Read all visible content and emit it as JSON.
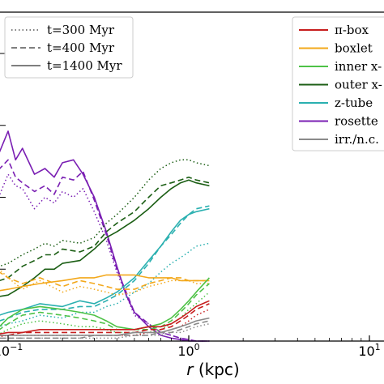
{
  "chart_data": {
    "type": "line",
    "xlabel": "r (kpc)",
    "xlabel_parts": {
      "var": "r",
      "unit": "(kpc)"
    },
    "x_scale": "log",
    "xlim": [
      0.08,
      1.3
    ],
    "ylim": [
      0,
      1.0
    ],
    "x_ticks": [
      {
        "value": 0.1,
        "label": "10",
        "exp": "−1"
      },
      {
        "value": 1,
        "label": "10",
        "exp": "0"
      },
      {
        "value": 10,
        "label": "10",
        "exp": "1"
      }
    ],
    "time_legend": {
      "placement": "top-left",
      "entries": [
        {
          "label": "t=300 Myr",
          "dash": "dotted",
          "color": "#555555"
        },
        {
          "label": "t=400 Myr",
          "dash": "dashed",
          "color": "#555555"
        },
        {
          "label": "t=1400 Myr",
          "dash": "solid",
          "color": "#555555"
        }
      ]
    },
    "orbit_legend": {
      "placement": "top-right",
      "entries": [
        {
          "label": "π-box",
          "color": "#c71e1e"
        },
        {
          "label": "boxlet",
          "color": "#f3a81b"
        },
        {
          "label": "inner x-",
          "color": "#4ec247"
        },
        {
          "label": "outer x-",
          "color": "#1b5e14"
        },
        {
          "label": "z-tube",
          "color": "#2ab0b0"
        },
        {
          "label": "rosette",
          "color": "#7a1fb3"
        },
        {
          "label": "irr./n.c.",
          "color": "#8a8a8a"
        }
      ]
    },
    "series": [
      {
        "name": "rosette",
        "color": "#7a1fb3",
        "time": "t=1400 Myr",
        "x": [
          0.08,
          0.09,
          0.1,
          0.11,
          0.12,
          0.14,
          0.16,
          0.18,
          0.2,
          0.23,
          0.26,
          0.3,
          0.35,
          0.4,
          0.45,
          0.5,
          0.6,
          0.7,
          0.8,
          0.9,
          1.0,
          1.1,
          1.3
        ],
        "y": [
          0.6,
          0.66,
          0.73,
          0.63,
          0.67,
          0.58,
          0.6,
          0.57,
          0.62,
          0.63,
          0.58,
          0.5,
          0.38,
          0.26,
          0.16,
          0.1,
          0.05,
          0.02,
          0.01,
          0.005,
          0,
          0,
          0
        ]
      },
      {
        "name": "rosette",
        "color": "#7a1fb3",
        "time": "t=400 Myr",
        "x": [
          0.08,
          0.09,
          0.1,
          0.11,
          0.12,
          0.14,
          0.16,
          0.18,
          0.2,
          0.23,
          0.26,
          0.3,
          0.35,
          0.4,
          0.45,
          0.5,
          0.6,
          0.7,
          0.8,
          0.9,
          1.0,
          1.1,
          1.3
        ],
        "y": [
          0.58,
          0.6,
          0.63,
          0.57,
          0.55,
          0.52,
          0.54,
          0.51,
          0.57,
          0.56,
          0.59,
          0.49,
          0.37,
          0.25,
          0.17,
          0.1,
          0.06,
          0.03,
          0.02,
          0.01,
          0.005,
          0,
          0
        ]
      },
      {
        "name": "rosette",
        "color": "#7a1fb3",
        "time": "t=300 Myr",
        "x": [
          0.08,
          0.09,
          0.1,
          0.11,
          0.12,
          0.14,
          0.16,
          0.18,
          0.2,
          0.23,
          0.26,
          0.3,
          0.35,
          0.4,
          0.45,
          0.5,
          0.6,
          0.7,
          0.8,
          0.9,
          1.0,
          1.1,
          1.3
        ],
        "y": [
          0.49,
          0.51,
          0.58,
          0.54,
          0.53,
          0.46,
          0.5,
          0.48,
          0.52,
          0.5,
          0.53,
          0.45,
          0.35,
          0.24,
          0.16,
          0.09,
          0.06,
          0.03,
          0.02,
          0.01,
          0.005,
          0,
          0
        ]
      },
      {
        "name": "outer x-",
        "color": "#1b5e14",
        "time": "t=1400 Myr",
        "x": [
          0.08,
          0.1,
          0.12,
          0.14,
          0.16,
          0.18,
          0.2,
          0.25,
          0.3,
          0.35,
          0.4,
          0.5,
          0.6,
          0.7,
          0.8,
          0.9,
          1.0,
          1.1,
          1.3
        ],
        "y": [
          0.15,
          0.16,
          0.19,
          0.22,
          0.25,
          0.25,
          0.27,
          0.28,
          0.32,
          0.36,
          0.38,
          0.42,
          0.46,
          0.5,
          0.53,
          0.55,
          0.56,
          0.55,
          0.54
        ]
      },
      {
        "name": "outer x-",
        "color": "#1b5e14",
        "time": "t=400 Myr",
        "x": [
          0.08,
          0.1,
          0.12,
          0.14,
          0.16,
          0.18,
          0.2,
          0.25,
          0.3,
          0.35,
          0.4,
          0.5,
          0.6,
          0.7,
          0.8,
          0.9,
          1.0,
          1.1,
          1.3
        ],
        "y": [
          0.2,
          0.22,
          0.26,
          0.28,
          0.3,
          0.3,
          0.32,
          0.31,
          0.33,
          0.38,
          0.41,
          0.45,
          0.5,
          0.54,
          0.55,
          0.56,
          0.57,
          0.56,
          0.55
        ]
      },
      {
        "name": "outer x-",
        "color": "#1b5e14",
        "time": "t=300 Myr",
        "x": [
          0.08,
          0.1,
          0.12,
          0.14,
          0.16,
          0.18,
          0.2,
          0.25,
          0.3,
          0.35,
          0.4,
          0.5,
          0.6,
          0.7,
          0.8,
          0.9,
          1.0,
          1.1,
          1.3
        ],
        "y": [
          0.25,
          0.27,
          0.3,
          0.32,
          0.34,
          0.33,
          0.35,
          0.34,
          0.36,
          0.41,
          0.44,
          0.5,
          0.56,
          0.6,
          0.62,
          0.63,
          0.63,
          0.62,
          0.61
        ]
      },
      {
        "name": "z-tube",
        "color": "#2ab0b0",
        "time": "t=1400 Myr",
        "x": [
          0.08,
          0.1,
          0.12,
          0.15,
          0.2,
          0.25,
          0.3,
          0.35,
          0.4,
          0.5,
          0.6,
          0.7,
          0.8,
          0.9,
          1.0,
          1.1,
          1.3
        ],
        "y": [
          0.08,
          0.1,
          0.11,
          0.13,
          0.12,
          0.14,
          0.13,
          0.15,
          0.17,
          0.22,
          0.28,
          0.33,
          0.38,
          0.42,
          0.44,
          0.45,
          0.46
        ]
      },
      {
        "name": "z-tube",
        "color": "#2ab0b0",
        "time": "t=400 Myr",
        "x": [
          0.08,
          0.1,
          0.12,
          0.15,
          0.2,
          0.25,
          0.3,
          0.35,
          0.4,
          0.5,
          0.6,
          0.7,
          0.8,
          0.9,
          1.0,
          1.1,
          1.3
        ],
        "y": [
          0.06,
          0.08,
          0.1,
          0.11,
          0.11,
          0.12,
          0.12,
          0.14,
          0.16,
          0.21,
          0.27,
          0.33,
          0.37,
          0.41,
          0.44,
          0.46,
          0.47
        ]
      },
      {
        "name": "z-tube",
        "color": "#2ab0b0",
        "time": "t=300 Myr",
        "x": [
          0.08,
          0.1,
          0.12,
          0.15,
          0.2,
          0.25,
          0.3,
          0.35,
          0.4,
          0.5,
          0.6,
          0.7,
          0.8,
          0.9,
          1.0,
          1.1,
          1.3
        ],
        "y": [
          0.04,
          0.06,
          0.07,
          0.09,
          0.08,
          0.1,
          0.1,
          0.12,
          0.13,
          0.17,
          0.2,
          0.24,
          0.27,
          0.29,
          0.31,
          0.33,
          0.34
        ]
      },
      {
        "name": "boxlet",
        "color": "#f3a81b",
        "time": "t=1400 Myr",
        "x": [
          0.08,
          0.1,
          0.12,
          0.15,
          0.2,
          0.25,
          0.3,
          0.35,
          0.4,
          0.5,
          0.6,
          0.7,
          0.8,
          0.9,
          1.0,
          1.1,
          1.3
        ],
        "y": [
          0.17,
          0.18,
          0.19,
          0.2,
          0.21,
          0.22,
          0.22,
          0.23,
          0.23,
          0.23,
          0.22,
          0.22,
          0.22,
          0.21,
          0.21,
          0.21,
          0.21
        ]
      },
      {
        "name": "boxlet",
        "color": "#f3a81b",
        "time": "t=400 Myr",
        "x": [
          0.08,
          0.1,
          0.12,
          0.15,
          0.2,
          0.25,
          0.3,
          0.35,
          0.4,
          0.5,
          0.6,
          0.7,
          0.8,
          0.9,
          1.0,
          1.1,
          1.3
        ],
        "y": [
          0.26,
          0.22,
          0.2,
          0.22,
          0.19,
          0.21,
          0.2,
          0.19,
          0.18,
          0.18,
          0.2,
          0.21,
          0.22,
          0.22,
          0.21,
          0.21,
          0.21
        ]
      },
      {
        "name": "boxlet",
        "color": "#f3a81b",
        "time": "t=300 Myr",
        "x": [
          0.08,
          0.1,
          0.12,
          0.15,
          0.2,
          0.25,
          0.3,
          0.35,
          0.4,
          0.5,
          0.6,
          0.7,
          0.8,
          0.9,
          1.0,
          1.1,
          1.3
        ],
        "y": [
          0.28,
          0.22,
          0.18,
          0.21,
          0.17,
          0.19,
          0.18,
          0.17,
          0.16,
          0.17,
          0.19,
          0.2,
          0.21,
          0.21,
          0.21,
          0.2,
          0.2
        ]
      },
      {
        "name": "inner x-",
        "color": "#4ec247",
        "time": "t=1400 Myr",
        "x": [
          0.08,
          0.1,
          0.12,
          0.15,
          0.2,
          0.25,
          0.3,
          0.35,
          0.4,
          0.5,
          0.6,
          0.7,
          0.8,
          0.9,
          1.0,
          1.1,
          1.3
        ],
        "y": [
          0.02,
          0.08,
          0.11,
          0.12,
          0.11,
          0.1,
          0.09,
          0.07,
          0.05,
          0.04,
          0.05,
          0.06,
          0.08,
          0.11,
          0.14,
          0.17,
          0.22
        ]
      },
      {
        "name": "inner x-",
        "color": "#4ec247",
        "time": "t=400 Myr",
        "x": [
          0.08,
          0.1,
          0.12,
          0.15,
          0.2,
          0.25,
          0.3,
          0.35,
          0.4,
          0.5,
          0.6,
          0.7,
          0.8,
          0.9,
          1.0,
          1.1,
          1.3
        ],
        "y": [
          0.02,
          0.06,
          0.09,
          0.1,
          0.09,
          0.08,
          0.07,
          0.06,
          0.04,
          0.04,
          0.04,
          0.05,
          0.07,
          0.1,
          0.13,
          0.16,
          0.2
        ]
      },
      {
        "name": "inner x-",
        "color": "#4ec247",
        "time": "t=300 Myr",
        "x": [
          0.08,
          0.1,
          0.12,
          0.15,
          0.2,
          0.25,
          0.3,
          0.35,
          0.4,
          0.5,
          0.6,
          0.7,
          0.8,
          0.9,
          1.0,
          1.1,
          1.3
        ],
        "y": [
          0.01,
          0.04,
          0.06,
          0.07,
          0.06,
          0.05,
          0.05,
          0.04,
          0.03,
          0.03,
          0.03,
          0.04,
          0.06,
          0.08,
          0.11,
          0.13,
          0.17
        ]
      },
      {
        "name": "π-box",
        "color": "#c71e1e",
        "time": "t=1400 Myr",
        "x": [
          0.08,
          0.1,
          0.12,
          0.15,
          0.2,
          0.25,
          0.3,
          0.35,
          0.4,
          0.5,
          0.6,
          0.7,
          0.8,
          0.9,
          1.0,
          1.1,
          1.3
        ],
        "y": [
          0.02,
          0.03,
          0.03,
          0.04,
          0.04,
          0.04,
          0.04,
          0.04,
          0.04,
          0.04,
          0.05,
          0.05,
          0.06,
          0.08,
          0.1,
          0.12,
          0.14
        ]
      },
      {
        "name": "π-box",
        "color": "#c71e1e",
        "time": "t=400 Myr",
        "x": [
          0.08,
          0.1,
          0.12,
          0.15,
          0.2,
          0.25,
          0.3,
          0.35,
          0.4,
          0.5,
          0.6,
          0.7,
          0.8,
          0.9,
          1.0,
          1.1,
          1.3
        ],
        "y": [
          0.02,
          0.02,
          0.03,
          0.03,
          0.03,
          0.03,
          0.03,
          0.03,
          0.03,
          0.03,
          0.04,
          0.04,
          0.05,
          0.07,
          0.09,
          0.11,
          0.13
        ]
      },
      {
        "name": "π-box",
        "color": "#c71e1e",
        "time": "t=300 Myr",
        "x": [
          0.08,
          0.1,
          0.12,
          0.15,
          0.2,
          0.25,
          0.3,
          0.35,
          0.4,
          0.5,
          0.6,
          0.7,
          0.8,
          0.9,
          1.0,
          1.1,
          1.3
        ],
        "y": [
          0.01,
          0.02,
          0.02,
          0.02,
          0.02,
          0.02,
          0.02,
          0.02,
          0.02,
          0.02,
          0.03,
          0.03,
          0.04,
          0.05,
          0.07,
          0.09,
          0.11
        ]
      },
      {
        "name": "irr./n.c.",
        "color": "#8a8a8a",
        "time": "t=1400 Myr",
        "x": [
          0.08,
          0.1,
          0.12,
          0.15,
          0.2,
          0.25,
          0.3,
          0.35,
          0.4,
          0.5,
          0.6,
          0.7,
          0.8,
          0.9,
          1.0,
          1.1,
          1.3
        ],
        "y": [
          0.02,
          0.02,
          0.02,
          0.02,
          0.02,
          0.02,
          0.02,
          0.02,
          0.02,
          0.03,
          0.03,
          0.03,
          0.04,
          0.05,
          0.06,
          0.07,
          0.08
        ]
      },
      {
        "name": "irr./n.c.",
        "color": "#8a8a8a",
        "time": "t=400 Myr",
        "x": [
          0.08,
          0.1,
          0.12,
          0.15,
          0.2,
          0.25,
          0.3,
          0.35,
          0.4,
          0.5,
          0.6,
          0.7,
          0.8,
          0.9,
          1.0,
          1.1,
          1.3
        ],
        "y": [
          0.01,
          0.01,
          0.01,
          0.01,
          0.01,
          0.01,
          0.02,
          0.02,
          0.02,
          0.02,
          0.02,
          0.03,
          0.03,
          0.04,
          0.05,
          0.06,
          0.07
        ]
      },
      {
        "name": "irr./n.c.",
        "color": "#8a8a8a",
        "time": "t=300 Myr",
        "x": [
          0.08,
          0.1,
          0.12,
          0.15,
          0.2,
          0.25,
          0.3,
          0.35,
          0.4,
          0.5,
          0.6,
          0.7,
          0.8,
          0.9,
          1.0,
          1.1,
          1.3
        ],
        "y": [
          0.01,
          0.01,
          0.01,
          0.01,
          0.01,
          0.01,
          0.01,
          0.01,
          0.01,
          0.02,
          0.02,
          0.02,
          0.03,
          0.03,
          0.04,
          0.05,
          0.06
        ]
      }
    ]
  }
}
